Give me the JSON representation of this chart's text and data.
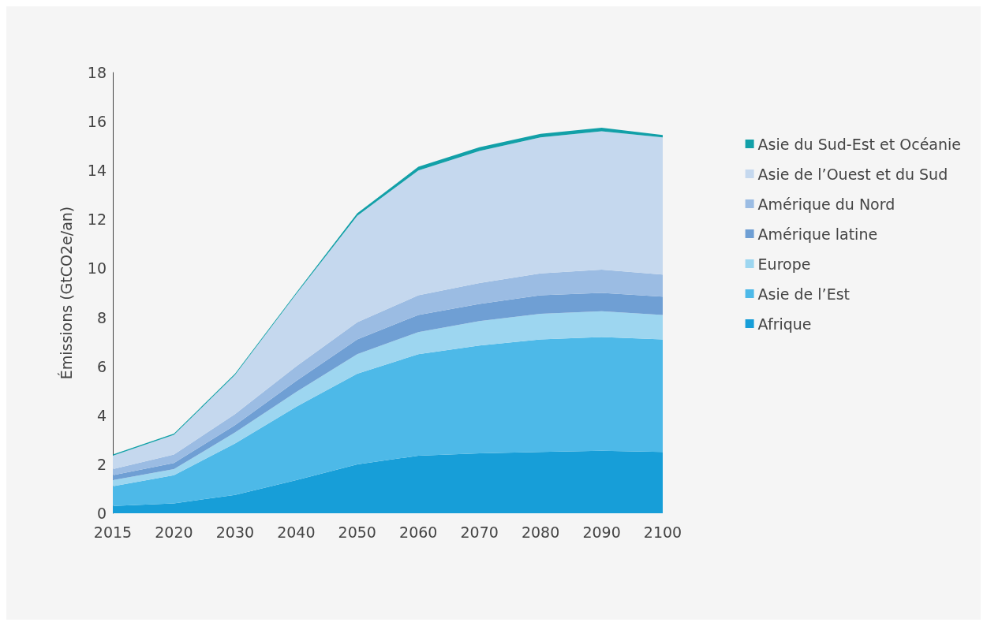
{
  "chart_data": {
    "type": "area",
    "stacked": true,
    "ylabel": "Émissions (GtCO2e/an)",
    "categories": [
      "2015",
      "2020",
      "2030",
      "2040",
      "2050",
      "2060",
      "2070",
      "2080",
      "2090",
      "2100"
    ],
    "ylim": [
      0,
      18
    ],
    "yticks": [
      0,
      2,
      4,
      6,
      8,
      10,
      12,
      14,
      16,
      18
    ],
    "grid": false,
    "legend": "right",
    "series": [
      {
        "name": "Afrique",
        "color": "#179ed8",
        "values": [
          0.3,
          0.4,
          0.75,
          1.35,
          2.0,
          2.35,
          2.45,
          2.5,
          2.55,
          2.5
        ]
      },
      {
        "name": "Asie de l’Est",
        "color": "#4db9e8",
        "values": [
          0.8,
          1.15,
          2.1,
          3.0,
          3.7,
          4.15,
          4.4,
          4.6,
          4.65,
          4.6
        ]
      },
      {
        "name": "Europe",
        "color": "#9dd6f0",
        "values": [
          0.25,
          0.25,
          0.45,
          0.6,
          0.8,
          0.9,
          1.0,
          1.05,
          1.05,
          1.0
        ]
      },
      {
        "name": "Amérique latine",
        "color": "#6f9fd4",
        "values": [
          0.2,
          0.25,
          0.3,
          0.45,
          0.6,
          0.7,
          0.7,
          0.75,
          0.75,
          0.75
        ]
      },
      {
        "name": "Amérique du Nord",
        "color": "#9bbce3",
        "values": [
          0.25,
          0.35,
          0.45,
          0.6,
          0.7,
          0.8,
          0.85,
          0.9,
          0.95,
          0.9
        ]
      },
      {
        "name": "Asie de l’Ouest et du Sud",
        "color": "#c5d8ee",
        "values": [
          0.55,
          0.8,
          1.6,
          2.95,
          4.35,
          5.1,
          5.4,
          5.55,
          5.65,
          5.6
        ]
      },
      {
        "name": "Asie du Sud-Est et Océanie",
        "color": "#12a0a8",
        "values": [
          0.05,
          0.05,
          0.05,
          0.05,
          0.1,
          0.15,
          0.15,
          0.15,
          0.15,
          0.1
        ]
      }
    ]
  }
}
